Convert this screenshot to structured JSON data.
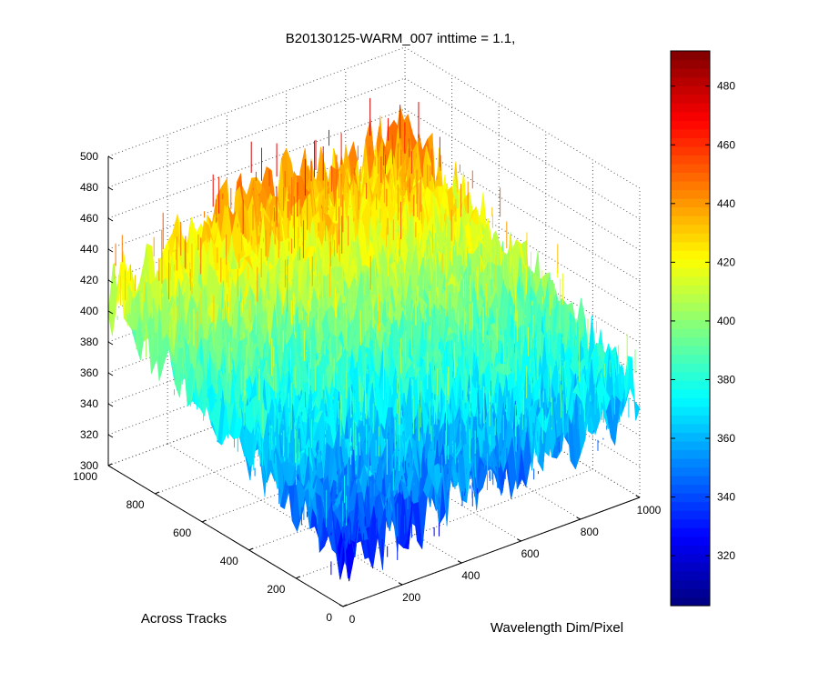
{
  "chart_data": {
    "type": "surface",
    "title": "B20130125-WARM_007 inttime = 1.1,",
    "xlabel": "Wavelength Dim/Pixel",
    "ylabel": "Across Tracks",
    "zlabel": "",
    "x_ticks": [
      "0",
      "200",
      "400",
      "600",
      "800",
      "1000"
    ],
    "y_ticks": [
      "0",
      "200",
      "400",
      "600",
      "800",
      "1000"
    ],
    "z_ticks": [
      "300",
      "320",
      "340",
      "360",
      "380",
      "400",
      "420",
      "440",
      "460",
      "480",
      "500"
    ],
    "xlim": [
      0,
      1000
    ],
    "ylim": [
      0,
      1000
    ],
    "zlim": [
      300,
      500
    ],
    "grid": true,
    "colormap": "jet",
    "colorbar": {
      "range": [
        303,
        492
      ],
      "ticks": [
        "320",
        "340",
        "360",
        "380",
        "400",
        "420",
        "440",
        "460",
        "480"
      ]
    },
    "surface_trend": {
      "corner_values": {
        "x0_y0": 335,
        "x1000_y0": 365,
        "x0_y1000": 410,
        "x1000_y1000": 440
      },
      "hotspot": {
        "x": 450,
        "y": 1000,
        "value": 445
      },
      "noise_amplitude": 25
    }
  }
}
